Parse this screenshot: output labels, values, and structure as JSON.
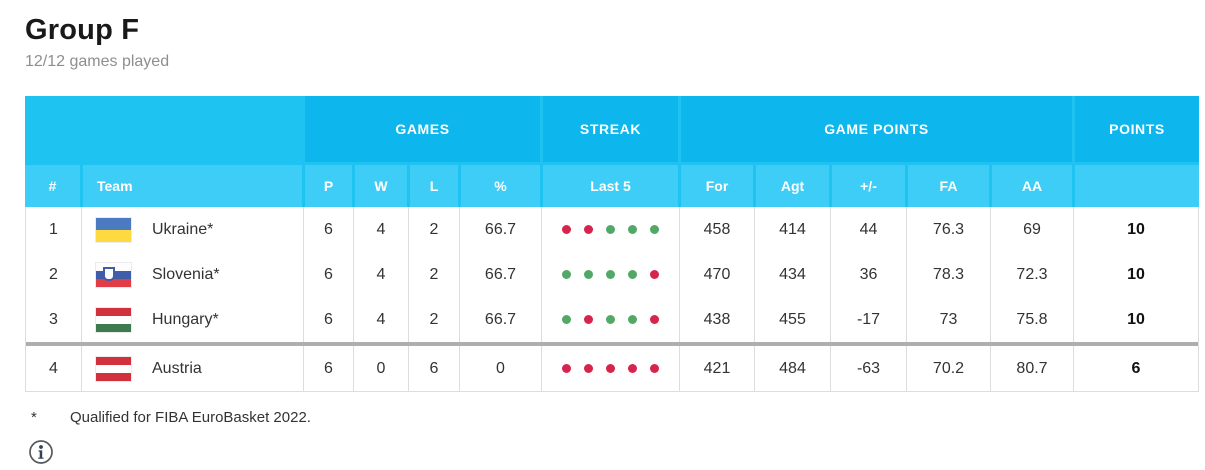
{
  "page": {
    "title": "Group F",
    "subtitle": "12/12 games played"
  },
  "table": {
    "group_headers": {
      "games": "GAMES",
      "streak": "STREAK",
      "game_points": "GAME POINTS",
      "points": "POINTS"
    },
    "sub_headers": {
      "rank": "#",
      "team": "Team",
      "p": "P",
      "w": "W",
      "l": "L",
      "pct": "%",
      "last5": "Last 5",
      "for": "For",
      "agt": "Agt",
      "diff": "+/-",
      "fa": "FA",
      "aa": "AA"
    },
    "rows": [
      {
        "rank": "1",
        "flag": "ukraine",
        "team": "Ukraine*",
        "p": "6",
        "w": "4",
        "l": "2",
        "pct": "66.7",
        "last5": [
          "L",
          "L",
          "W",
          "W",
          "W"
        ],
        "for": "458",
        "agt": "414",
        "diff": "44",
        "fa": "76.3",
        "aa": "69",
        "points": "10",
        "qualified": true
      },
      {
        "rank": "2",
        "flag": "slovenia",
        "team": "Slovenia*",
        "p": "6",
        "w": "4",
        "l": "2",
        "pct": "66.7",
        "last5": [
          "W",
          "W",
          "W",
          "W",
          "L"
        ],
        "for": "470",
        "agt": "434",
        "diff": "36",
        "fa": "78.3",
        "aa": "72.3",
        "points": "10",
        "qualified": true
      },
      {
        "rank": "3",
        "flag": "hungary",
        "team": "Hungary*",
        "p": "6",
        "w": "4",
        "l": "2",
        "pct": "66.7",
        "last5": [
          "W",
          "L",
          "W",
          "W",
          "L"
        ],
        "for": "438",
        "agt": "455",
        "diff": "-17",
        "fa": "73",
        "aa": "75.8",
        "points": "10",
        "qualified": true
      },
      {
        "rank": "4",
        "flag": "austria",
        "team": "Austria",
        "p": "6",
        "w": "0",
        "l": "6",
        "pct": "0",
        "last5": [
          "L",
          "L",
          "L",
          "L",
          "L"
        ],
        "for": "421",
        "agt": "484",
        "diff": "-63",
        "fa": "70.2",
        "aa": "80.7",
        "points": "6",
        "qualified": false
      }
    ]
  },
  "footnote": {
    "marker": "*",
    "text": "Qualified for FIBA EuroBasket 2022."
  },
  "colors": {
    "header_base": "#1fc3f2",
    "header_group": "#0db6ec",
    "header_cell": "#3ecdf6",
    "win_green": "#52a866",
    "loss_red": "#d6244c",
    "divider_gray": "#aeaeae"
  }
}
